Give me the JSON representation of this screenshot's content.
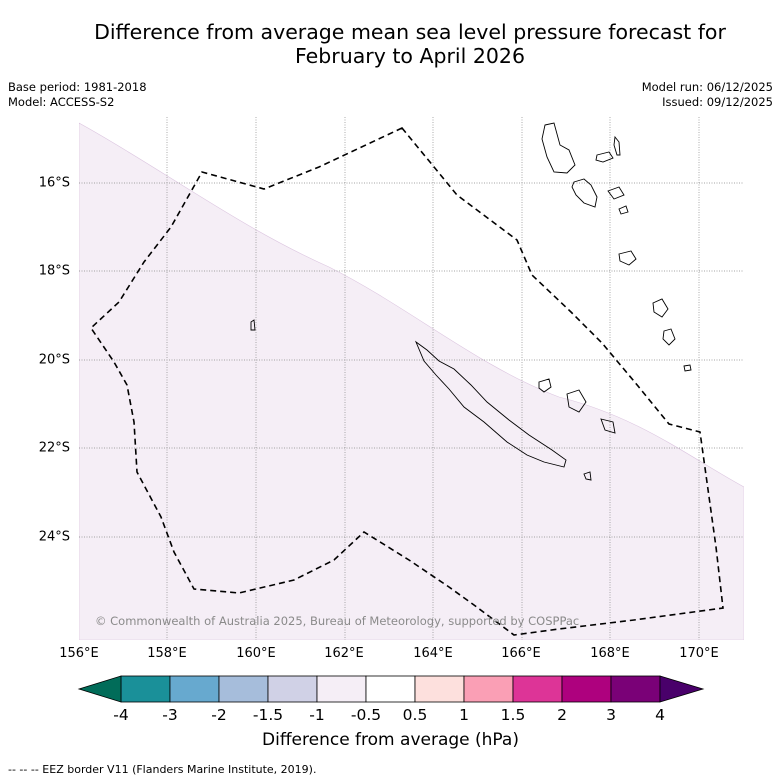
{
  "title": {
    "line1": "Difference from average mean sea level pressure forecast for",
    "line2": "February to April 2026"
  },
  "meta": {
    "base_period": "Base period: 1981-2018",
    "model": "Model: ACCESS-S2",
    "model_run": "Model run: 06/12/2025",
    "issued": "Issued: 09/12/2025"
  },
  "map": {
    "region": "New Caledonia and Vanuatu",
    "lon_range": [
      156,
      171
    ],
    "lat_range": [
      -26.3,
      -14.5
    ],
    "lat_labels": [
      "16°S",
      "18°S",
      "20°S",
      "22°S",
      "24°S"
    ],
    "lon_labels": [
      "156°E",
      "158°E",
      "160°E",
      "162°E",
      "164°E",
      "166°E",
      "168°E",
      "170°E"
    ],
    "shaded_category": "-1 to -0.5",
    "shaded_color": "#f5eef6",
    "copyright": "© Commonwealth of Australia 2025, Bureau of Meteorology, supported by COSPPac"
  },
  "colorbar": {
    "ticks": [
      "-4",
      "-3",
      "-2",
      "-1.5",
      "-1",
      "-0.5",
      "0.5",
      "1",
      "1.5",
      "2",
      "3",
      "4"
    ],
    "colors": [
      "#1a9099",
      "#67a9cf",
      "#a6bddb",
      "#d0d1e6",
      "#f5eef6",
      "#ffffff",
      "#fde0dd",
      "#fa9fb5",
      "#dd3497",
      "#ae017e",
      "#7a0177"
    ],
    "under_color": "#016c59",
    "over_color": "#49006a",
    "label": "Difference from average (hPa)"
  },
  "footer": {
    "legend": "--  --  -- EEZ border V11 (Flanders Marine Institute, 2019)."
  }
}
